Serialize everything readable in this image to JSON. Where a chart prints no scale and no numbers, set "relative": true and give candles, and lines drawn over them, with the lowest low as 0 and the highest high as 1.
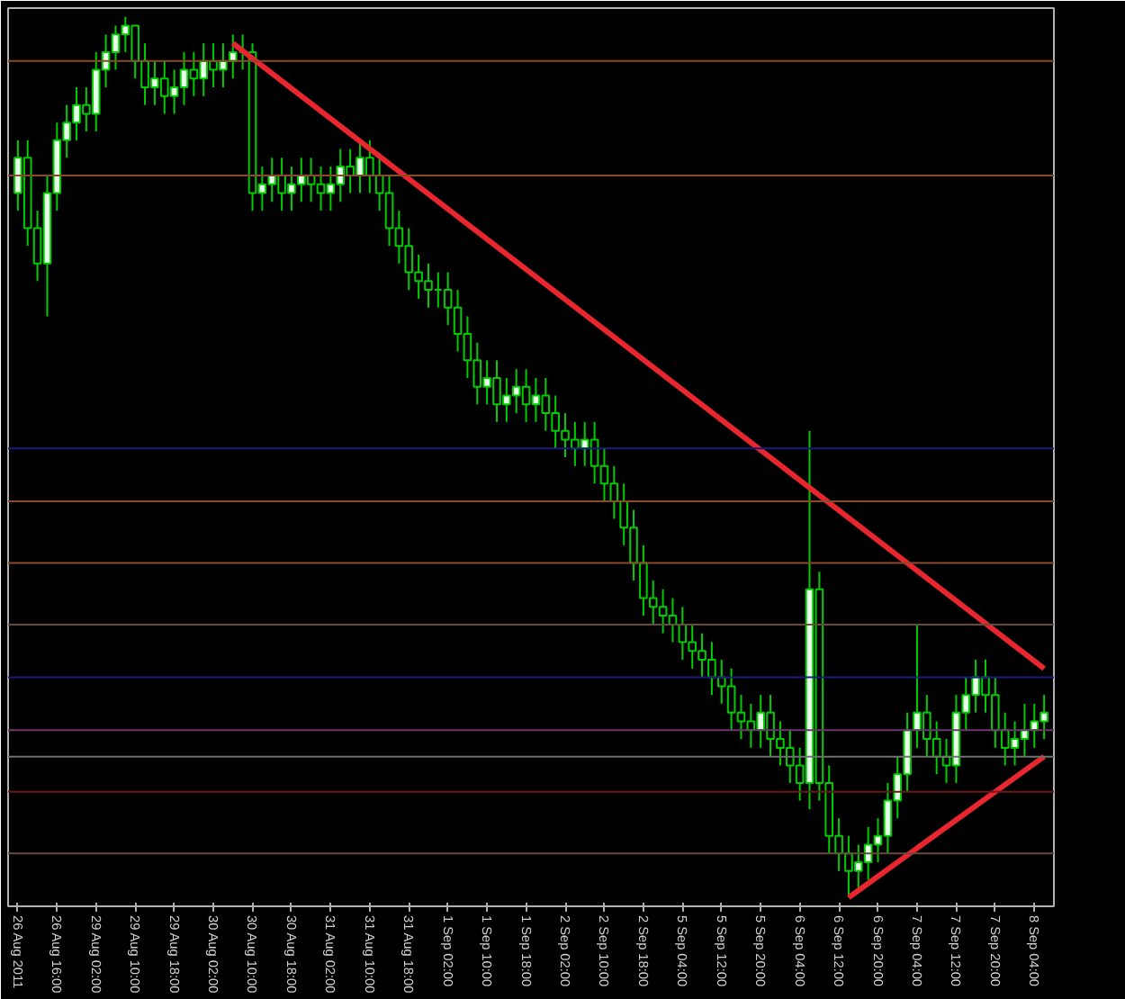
{
  "chart_data": {
    "type": "candlestick",
    "relative": true,
    "grid": false,
    "categories": [
      "26 Aug 2011",
      null,
      null,
      null,
      "26 Aug 16:00",
      null,
      null,
      null,
      "29 Aug 02:00",
      null,
      null,
      null,
      "29 Aug 10:00",
      null,
      null,
      null,
      "29 Aug 18:00",
      null,
      null,
      null,
      "30 Aug 02:00",
      null,
      null,
      null,
      "30 Aug 10:00",
      null,
      null,
      null,
      "30 Aug 18:00",
      null,
      null,
      null,
      "31 Aug 02:00",
      null,
      null,
      null,
      "31 Aug 10:00",
      null,
      null,
      null,
      "31 Aug 18:00",
      null,
      null,
      null,
      "1 Sep 02:00",
      null,
      null,
      null,
      "1 Sep 10:00",
      null,
      null,
      null,
      "1 Sep 18:00",
      null,
      null,
      null,
      "2 Sep 02:00",
      null,
      null,
      null,
      "2 Sep 10:00",
      null,
      null,
      null,
      "2 Sep 18:00",
      null,
      null,
      null,
      "5 Sep 04:00",
      null,
      null,
      null,
      "5 Sep 12:00",
      null,
      null,
      null,
      "5 Sep 20:00",
      null,
      null,
      null,
      "6 Sep 04:00",
      null,
      null,
      null,
      "6 Sep 12:00",
      null,
      null,
      null,
      "6 Sep 20:00",
      null,
      null,
      null,
      "7 Sep 04:00",
      null,
      null,
      null,
      "7 Sep 12:00",
      null,
      null,
      null,
      "7 Sep 20:00",
      null,
      null,
      null,
      "8 Sep 04:00",
      null
    ],
    "ohlc": [
      [
        0.8,
        0.86,
        0.78,
        0.84
      ],
      [
        0.84,
        0.86,
        0.74,
        0.76
      ],
      [
        0.76,
        0.78,
        0.7,
        0.72
      ],
      [
        0.72,
        0.82,
        0.66,
        0.8
      ],
      [
        0.8,
        0.88,
        0.78,
        0.86
      ],
      [
        0.86,
        0.9,
        0.84,
        0.88
      ],
      [
        0.88,
        0.92,
        0.86,
        0.9
      ],
      [
        0.9,
        0.92,
        0.87,
        0.89
      ],
      [
        0.89,
        0.96,
        0.87,
        0.94
      ],
      [
        0.94,
        0.98,
        0.92,
        0.96
      ],
      [
        0.96,
        0.99,
        0.94,
        0.98
      ],
      [
        0.98,
        1.0,
        0.96,
        0.99
      ],
      [
        0.99,
        0.99,
        0.93,
        0.95
      ],
      [
        0.95,
        0.97,
        0.9,
        0.92
      ],
      [
        0.92,
        0.95,
        0.9,
        0.93
      ],
      [
        0.93,
        0.95,
        0.89,
        0.91
      ],
      [
        0.91,
        0.94,
        0.89,
        0.92
      ],
      [
        0.92,
        0.96,
        0.9,
        0.94
      ],
      [
        0.94,
        0.96,
        0.91,
        0.93
      ],
      [
        0.93,
        0.97,
        0.91,
        0.95
      ],
      [
        0.95,
        0.97,
        0.92,
        0.94
      ],
      [
        0.94,
        0.97,
        0.92,
        0.95
      ],
      [
        0.95,
        0.98,
        0.93,
        0.96
      ],
      [
        0.96,
        0.98,
        0.94,
        0.96
      ],
      [
        0.96,
        0.97,
        0.78,
        0.8
      ],
      [
        0.8,
        0.83,
        0.78,
        0.81
      ],
      [
        0.81,
        0.84,
        0.79,
        0.82
      ],
      [
        0.82,
        0.84,
        0.78,
        0.8
      ],
      [
        0.8,
        0.83,
        0.78,
        0.81
      ],
      [
        0.81,
        0.84,
        0.79,
        0.82
      ],
      [
        0.82,
        0.84,
        0.79,
        0.81
      ],
      [
        0.81,
        0.83,
        0.78,
        0.8
      ],
      [
        0.8,
        0.83,
        0.78,
        0.81
      ],
      [
        0.81,
        0.85,
        0.79,
        0.83
      ],
      [
        0.83,
        0.85,
        0.8,
        0.82
      ],
      [
        0.82,
        0.86,
        0.8,
        0.84
      ],
      [
        0.84,
        0.86,
        0.8,
        0.82
      ],
      [
        0.82,
        0.84,
        0.78,
        0.8
      ],
      [
        0.8,
        0.82,
        0.74,
        0.76
      ],
      [
        0.76,
        0.78,
        0.72,
        0.74
      ],
      [
        0.74,
        0.76,
        0.69,
        0.71
      ],
      [
        0.71,
        0.73,
        0.68,
        0.7
      ],
      [
        0.7,
        0.72,
        0.67,
        0.69
      ],
      [
        0.69,
        0.71,
        0.67,
        0.69
      ],
      [
        0.69,
        0.71,
        0.65,
        0.67
      ],
      [
        0.67,
        0.69,
        0.62,
        0.64
      ],
      [
        0.64,
        0.66,
        0.59,
        0.61
      ],
      [
        0.61,
        0.63,
        0.56,
        0.58
      ],
      [
        0.58,
        0.61,
        0.56,
        0.59
      ],
      [
        0.59,
        0.61,
        0.54,
        0.56
      ],
      [
        0.56,
        0.59,
        0.54,
        0.57
      ],
      [
        0.57,
        0.6,
        0.55,
        0.58
      ],
      [
        0.58,
        0.6,
        0.54,
        0.56
      ],
      [
        0.56,
        0.59,
        0.54,
        0.57
      ],
      [
        0.57,
        0.59,
        0.53,
        0.55
      ],
      [
        0.55,
        0.57,
        0.51,
        0.53
      ],
      [
        0.53,
        0.55,
        0.5,
        0.52
      ],
      [
        0.52,
        0.54,
        0.49,
        0.51
      ],
      [
        0.51,
        0.54,
        0.49,
        0.52
      ],
      [
        0.52,
        0.54,
        0.47,
        0.49
      ],
      [
        0.49,
        0.51,
        0.45,
        0.47
      ],
      [
        0.47,
        0.49,
        0.43,
        0.45
      ],
      [
        0.45,
        0.47,
        0.4,
        0.42
      ],
      [
        0.42,
        0.44,
        0.36,
        0.38
      ],
      [
        0.38,
        0.4,
        0.32,
        0.34
      ],
      [
        0.34,
        0.36,
        0.31,
        0.33
      ],
      [
        0.33,
        0.35,
        0.3,
        0.32
      ],
      [
        0.32,
        0.34,
        0.29,
        0.31
      ],
      [
        0.31,
        0.33,
        0.27,
        0.29
      ],
      [
        0.29,
        0.31,
        0.26,
        0.28
      ],
      [
        0.28,
        0.3,
        0.25,
        0.27
      ],
      [
        0.27,
        0.29,
        0.23,
        0.25
      ],
      [
        0.25,
        0.27,
        0.22,
        0.24
      ],
      [
        0.24,
        0.26,
        0.19,
        0.21
      ],
      [
        0.21,
        0.23,
        0.18,
        0.2
      ],
      [
        0.2,
        0.22,
        0.17,
        0.19
      ],
      [
        0.19,
        0.23,
        0.17,
        0.21
      ],
      [
        0.21,
        0.23,
        0.16,
        0.18
      ],
      [
        0.18,
        0.2,
        0.15,
        0.17
      ],
      [
        0.17,
        0.19,
        0.13,
        0.15
      ],
      [
        0.15,
        0.17,
        0.11,
        0.13
      ],
      [
        0.13,
        0.53,
        0.1,
        0.35
      ],
      [
        0.35,
        0.37,
        0.11,
        0.13
      ],
      [
        0.13,
        0.15,
        0.05,
        0.07
      ],
      [
        0.07,
        0.09,
        0.03,
        0.05
      ],
      [
        0.05,
        0.07,
        0.0,
        0.03
      ],
      [
        0.03,
        0.06,
        0.01,
        0.04
      ],
      [
        0.04,
        0.08,
        0.02,
        0.06
      ],
      [
        0.06,
        0.09,
        0.04,
        0.07
      ],
      [
        0.07,
        0.13,
        0.05,
        0.11
      ],
      [
        0.11,
        0.16,
        0.09,
        0.14
      ],
      [
        0.14,
        0.21,
        0.12,
        0.19
      ],
      [
        0.19,
        0.31,
        0.17,
        0.21
      ],
      [
        0.21,
        0.23,
        0.16,
        0.18
      ],
      [
        0.18,
        0.2,
        0.14,
        0.16
      ],
      [
        0.16,
        0.18,
        0.13,
        0.15
      ],
      [
        0.15,
        0.23,
        0.13,
        0.21
      ],
      [
        0.21,
        0.25,
        0.19,
        0.23
      ],
      [
        0.23,
        0.27,
        0.21,
        0.25
      ],
      [
        0.25,
        0.27,
        0.21,
        0.23
      ],
      [
        0.23,
        0.25,
        0.17,
        0.19
      ],
      [
        0.19,
        0.21,
        0.15,
        0.17
      ],
      [
        0.17,
        0.2,
        0.15,
        0.18
      ],
      [
        0.18,
        0.22,
        0.16,
        0.19
      ],
      [
        0.19,
        0.22,
        0.17,
        0.2
      ],
      [
        0.2,
        0.23,
        0.18,
        0.21
      ]
    ],
    "series": [
      {
        "type": "line",
        "color": "#e8262d",
        "values": [
          null,
          null,
          null,
          null,
          null,
          null,
          null,
          null,
          null,
          null,
          null,
          null,
          null,
          null,
          null,
          null,
          null,
          null,
          null,
          null,
          null,
          null,
          0.97,
          null,
          null,
          null,
          null,
          null,
          null,
          null,
          null,
          null,
          null,
          null,
          null,
          null,
          null,
          null,
          null,
          null,
          null,
          null,
          null,
          null,
          null,
          null,
          null,
          null,
          null,
          null,
          null,
          null,
          null,
          null,
          null,
          null,
          null,
          null,
          null,
          null,
          null,
          null,
          null,
          null,
          null,
          null,
          null,
          null,
          null,
          null,
          null,
          null,
          null,
          null,
          null,
          null,
          null,
          null,
          null,
          null,
          null,
          null,
          null,
          null,
          null,
          null,
          null,
          null,
          null,
          null,
          null,
          null,
          null,
          null,
          null,
          null,
          null,
          null,
          null,
          null,
          null,
          null,
          null,
          null,
          null,
          0.26
        ]
      },
      {
        "type": "line",
        "color": "#e8262d",
        "values": [
          null,
          null,
          null,
          null,
          null,
          null,
          null,
          null,
          null,
          null,
          null,
          null,
          null,
          null,
          null,
          null,
          null,
          null,
          null,
          null,
          null,
          null,
          null,
          null,
          null,
          null,
          null,
          null,
          null,
          null,
          null,
          null,
          null,
          null,
          null,
          null,
          null,
          null,
          null,
          null,
          null,
          null,
          null,
          null,
          null,
          null,
          null,
          null,
          null,
          null,
          null,
          null,
          null,
          null,
          null,
          null,
          null,
          null,
          null,
          null,
          null,
          null,
          null,
          null,
          null,
          null,
          null,
          null,
          null,
          null,
          null,
          null,
          null,
          null,
          null,
          null,
          null,
          null,
          null,
          null,
          null,
          null,
          null,
          null,
          null,
          0.0,
          null,
          null,
          null,
          null,
          null,
          null,
          null,
          null,
          null,
          null,
          null,
          null,
          null,
          null,
          null,
          null,
          null,
          null,
          null,
          0.16
        ]
      }
    ],
    "ref_lines": [
      {
        "axis": "y",
        "value": 0.95,
        "color": "#8a4a2a"
      },
      {
        "axis": "y",
        "value": 0.82,
        "color": "#8a4a2a"
      },
      {
        "axis": "y",
        "value": 0.51,
        "color": "#1a1a80"
      },
      {
        "axis": "y",
        "value": 0.45,
        "color": "#8a4a2a"
      },
      {
        "axis": "y",
        "value": 0.38,
        "color": "#8a4a2a"
      },
      {
        "axis": "y",
        "value": 0.31,
        "color": "#6a4a3a"
      },
      {
        "axis": "y",
        "value": 0.25,
        "color": "#1a1a80"
      },
      {
        "axis": "y",
        "value": 0.19,
        "color": "#6a3a6a"
      },
      {
        "axis": "y",
        "value": 0.16,
        "color": "#707070"
      },
      {
        "axis": "y",
        "value": 0.12,
        "color": "#6a1a1a"
      },
      {
        "axis": "y",
        "value": 0.05,
        "color": "#6a4a3a"
      }
    ]
  }
}
